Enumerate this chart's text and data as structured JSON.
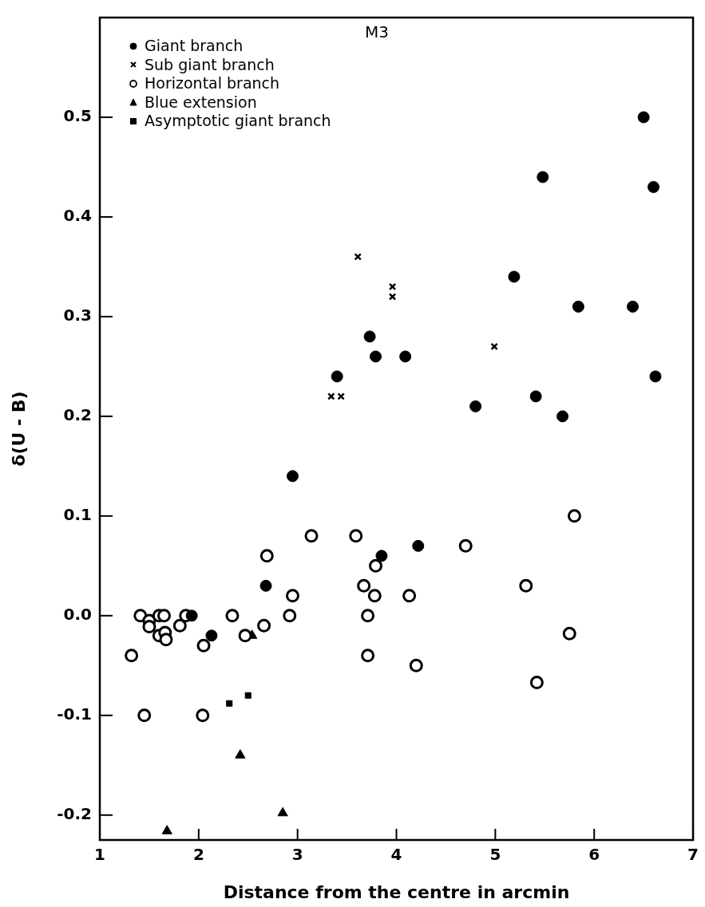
{
  "chart_data": {
    "type": "scatter",
    "title": "M3",
    "xlabel": "Distance from the centre in arcmin",
    "ylabel": "δ(U - B)",
    "xlim": [
      1,
      7
    ],
    "ylim": [
      -0.225,
      0.6
    ],
    "xticks": [
      1,
      2,
      3,
      4,
      5,
      6,
      7
    ],
    "yticks": [
      {
        "value": -0.2,
        "label": "-0.2"
      },
      {
        "value": -0.1,
        "label": "-0.1"
      },
      {
        "value": 0,
        "label": "0.0"
      },
      {
        "value": 0.1,
        "label": "0.1"
      },
      {
        "value": 0.2,
        "label": "0.2"
      },
      {
        "value": 0.3,
        "label": "0.3"
      },
      {
        "value": 0.4,
        "label": "0.4"
      },
      {
        "value": 0.5,
        "label": "0.5"
      }
    ],
    "grid": false,
    "legend": "top left",
    "series": [
      {
        "name": "Giant branch",
        "color": "#000000",
        "marker": "circle",
        "x": [
          1.93,
          2.13,
          2.68,
          2.95,
          3.4,
          3.73,
          3.79,
          3.85,
          4.09,
          4.22,
          4.8,
          5.19,
          5.41,
          5.48,
          5.68,
          5.84,
          6.39,
          6.5,
          6.6,
          6.62
        ],
        "values": [
          0,
          -0.02,
          0.03,
          0.14,
          0.24,
          0.28,
          0.26,
          0.06,
          0.26,
          0.07,
          0.21,
          0.34,
          0.22,
          0.44,
          0.2,
          0.31,
          0.31,
          0.5,
          0.43,
          0.24
        ]
      },
      {
        "name": "Sub giant branch",
        "color": "#000000",
        "marker": "cross",
        "x": [
          3.34,
          3.44,
          3.61,
          3.96,
          3.96,
          4.99
        ],
        "values": [
          0.22,
          0.22,
          0.36,
          0.33,
          0.32,
          0.27
        ]
      },
      {
        "name": "Horizontal branch",
        "color": "#ffffff",
        "marker": "circle",
        "x": [
          1.32,
          1.41,
          1.45,
          1.5,
          1.5,
          1.6,
          1.6,
          1.65,
          1.66,
          1.67,
          1.81,
          1.87,
          2.04,
          2.05,
          2.34,
          2.47,
          2.66,
          2.69,
          2.92,
          2.95,
          3.14,
          3.59,
          3.67,
          3.71,
          3.71,
          3.78,
          3.79,
          4.13,
          4.2,
          4.7,
          5.31,
          5.42,
          5.75,
          5.8
        ],
        "values": [
          -0.04,
          0,
          -0.1,
          -0.005,
          -0.011,
          0,
          -0.02,
          0,
          -0.017,
          -0.024,
          -0.01,
          0,
          -0.1,
          -0.03,
          0,
          -0.02,
          -0.01,
          0.06,
          0,
          0.02,
          0.08,
          0.08,
          0.03,
          0,
          -0.04,
          0.02,
          0.05,
          0.02,
          -0.05,
          0.07,
          0.03,
          -0.067,
          -0.018,
          0.1
        ]
      },
      {
        "name": "Blue extension",
        "color": "#000000",
        "marker": "triangle",
        "x": [
          1.68,
          2.42,
          2.54,
          2.85
        ],
        "values": [
          -0.216,
          -0.14,
          -0.02,
          -0.198
        ]
      },
      {
        "name": "Asymptotic giant branch",
        "color": "#000000",
        "marker": "square",
        "x": [
          2.31,
          2.5
        ],
        "values": [
          -0.088,
          -0.08
        ]
      }
    ]
  }
}
